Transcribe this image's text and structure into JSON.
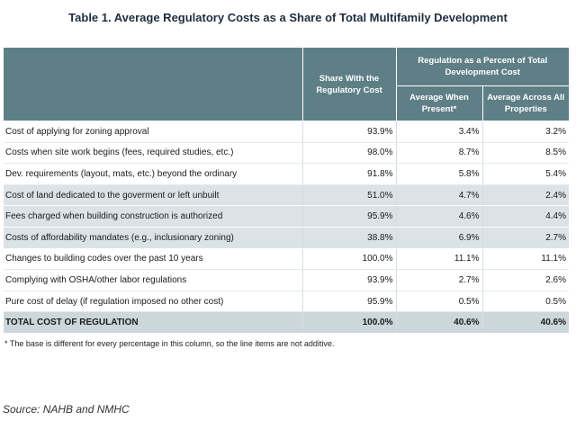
{
  "title": "Table 1. Average Regulatory Costs as a Share of Total Multifamily Development",
  "headers": {
    "share": "Share With the Regulatory Cost",
    "group": "Regulation as a Percent of Total Development Cost",
    "when_present": "Average When Present*",
    "across_all": "Average Across All Properties"
  },
  "rows": [
    {
      "label": "Cost of applying for zoning approval",
      "share": "93.9%",
      "when_present": "3.4%",
      "across_all": "3.2%"
    },
    {
      "label": "Costs when site work begins (fees, required studies, etc.)",
      "share": "98.0%",
      "when_present": "8.7%",
      "across_all": "8.5%"
    },
    {
      "label": "Dev. requirements (layout, mats, etc.) beyond the ordinary",
      "share": "91.8%",
      "when_present": "5.8%",
      "across_all": "5.4%"
    },
    {
      "label": "Cost of land dedicated to the goverment or left unbuilt",
      "share": "51.0%",
      "when_present": "4.7%",
      "across_all": "2.4%"
    },
    {
      "label": "Fees charged when building construction is authorized",
      "share": "95.9%",
      "when_present": "4.6%",
      "across_all": "4.4%"
    },
    {
      "label": "Costs of affordability mandates (e.g., inclusionary zoning)",
      "share": "38.8%",
      "when_present": "6.9%",
      "across_all": "2.7%"
    },
    {
      "label": "Changes to building codes over the past 10 years",
      "share": "100.0%",
      "when_present": "11.1%",
      "across_all": "11.1%"
    },
    {
      "label": "Complying with OSHA/other labor regulations",
      "share": "93.9%",
      "when_present": "2.7%",
      "across_all": "2.6%"
    },
    {
      "label": "Pure cost of delay (if regulation imposed no other cost)",
      "share": "95.9%",
      "when_present": "0.5%",
      "across_all": "0.5%"
    }
  ],
  "total": {
    "label": "TOTAL COST OF REGULATION",
    "share": "100.0%",
    "when_present": "40.6%",
    "across_all": "40.6%"
  },
  "footnote": "* The base is different for every percentage in this column, so the line items are not additive.",
  "source": "Source: NAHB and NMHC",
  "colors": {
    "header_bg": "#5e7f86",
    "shade_row": "#dbe3e6",
    "total_row": "#ccd7db"
  }
}
